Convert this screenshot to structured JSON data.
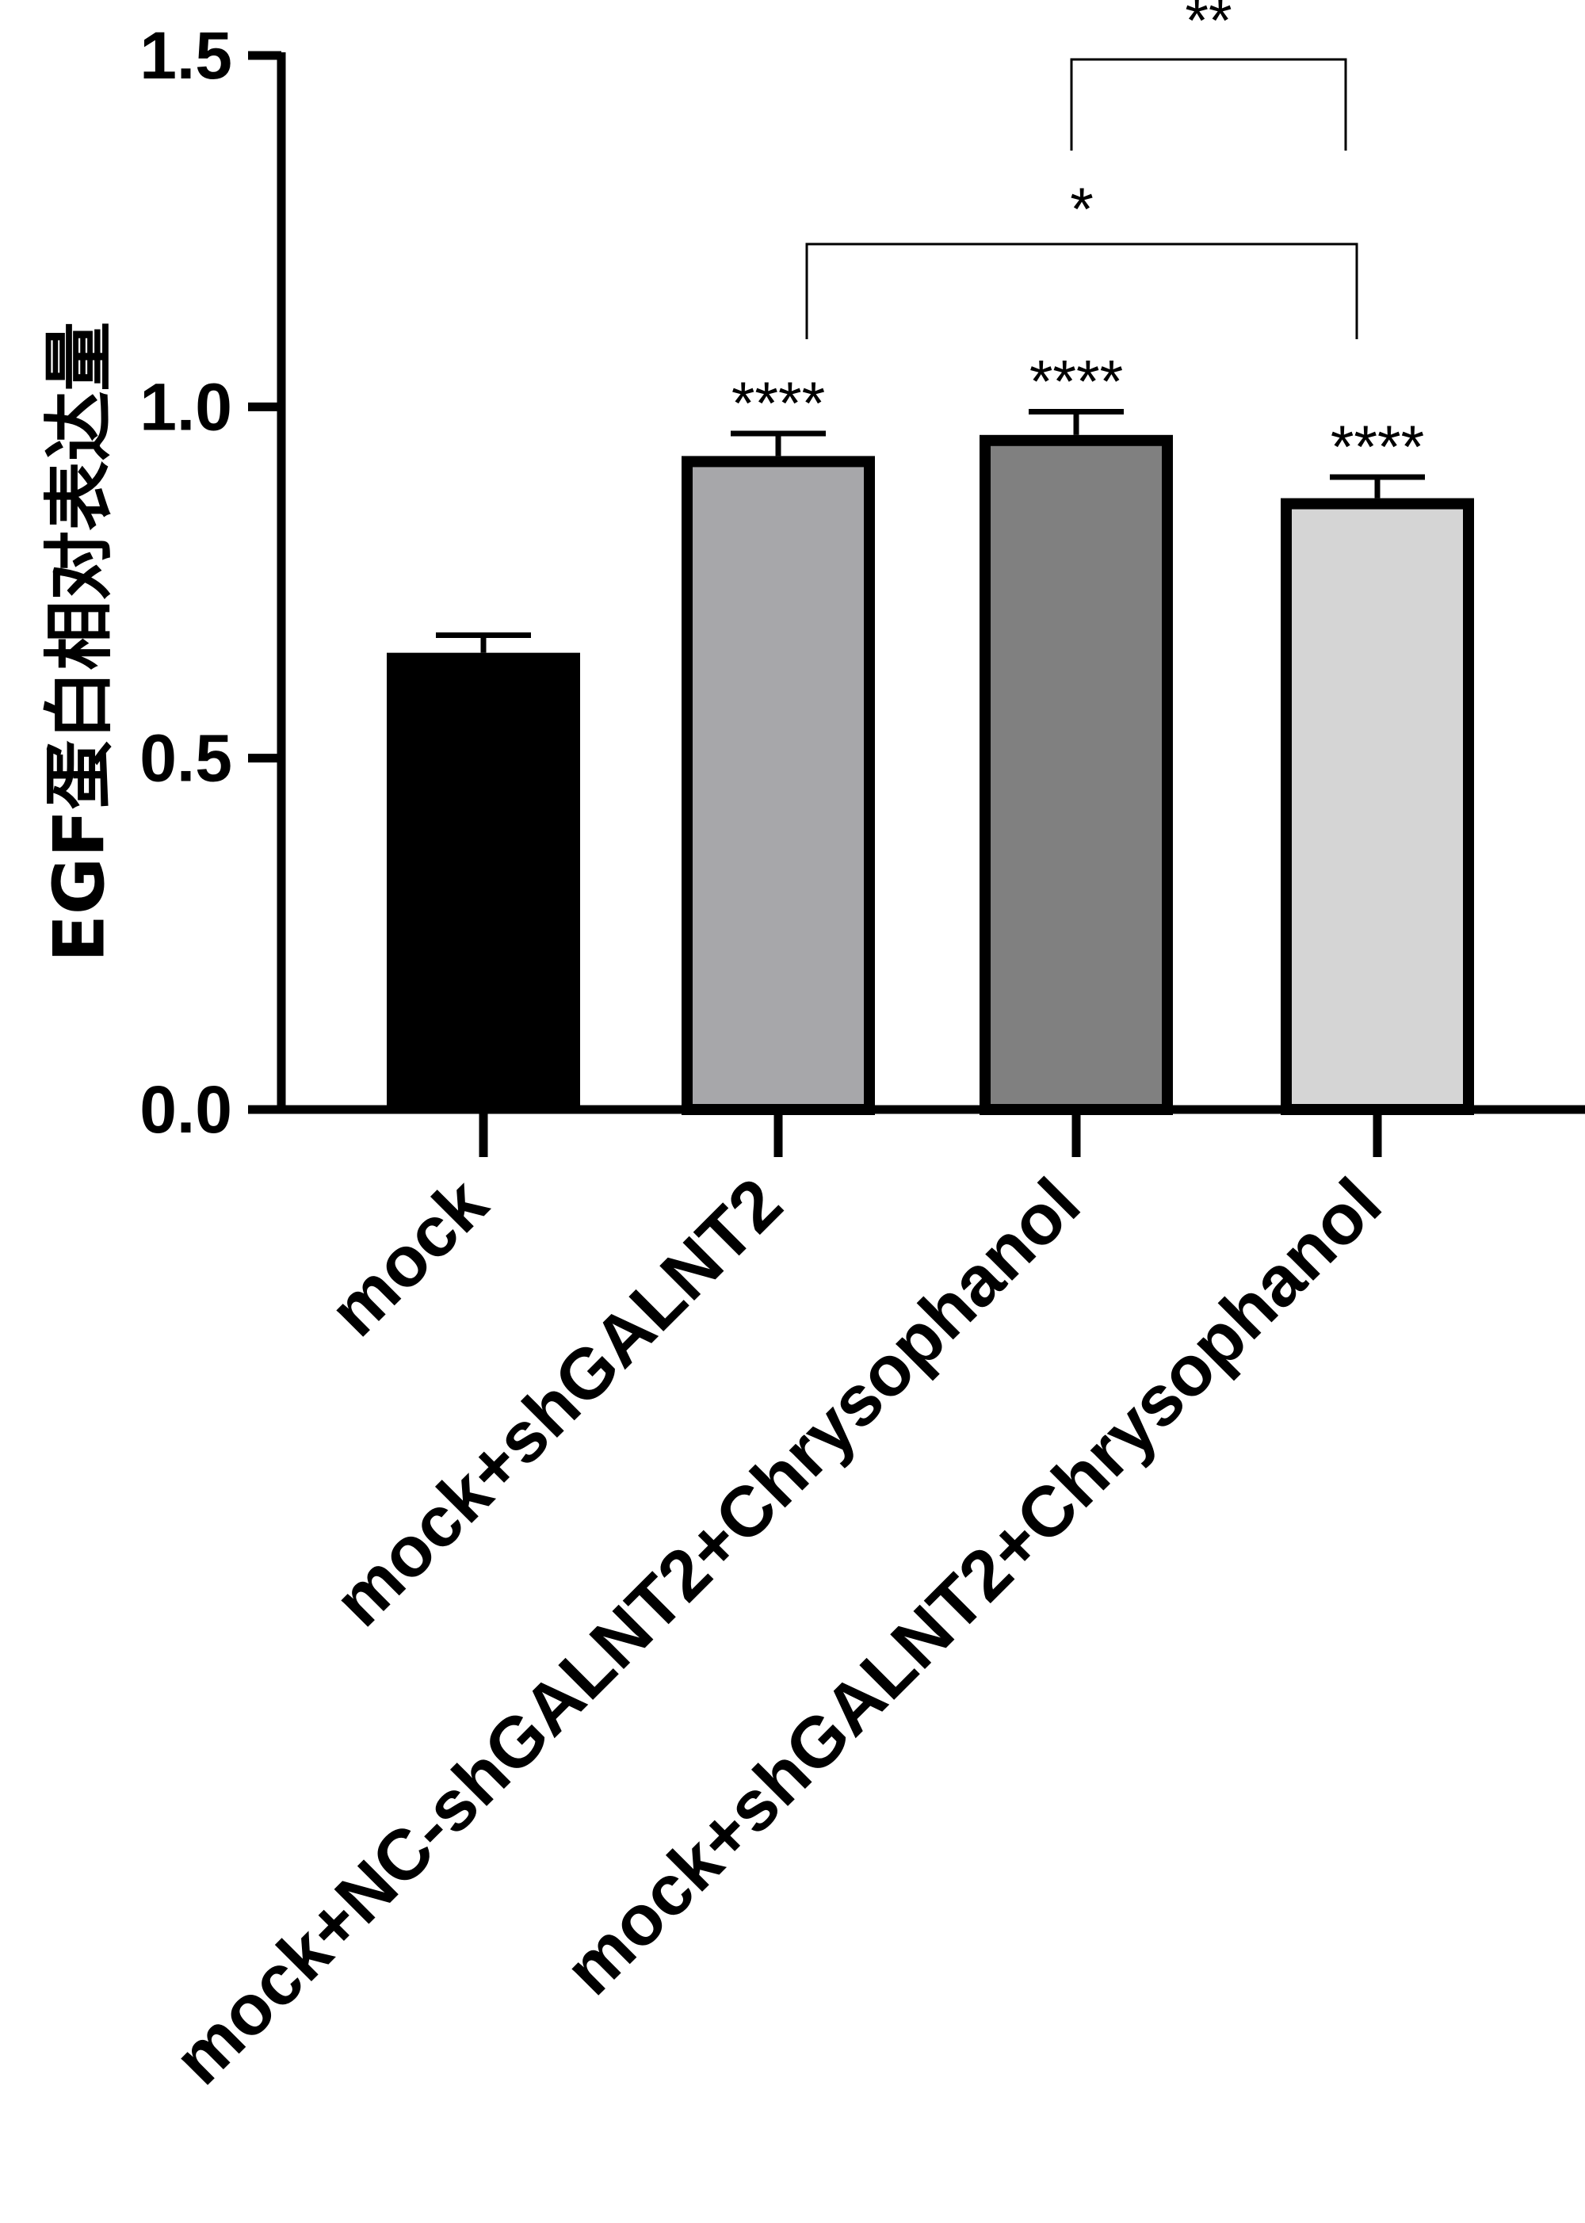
{
  "chart_data": {
    "type": "bar",
    "title": "",
    "xlabel": "",
    "ylabel": "EGF蛋白相对表达量",
    "ylim": [
      0,
      1.5
    ],
    "yticks": [
      "0.0",
      "0.5",
      "1.0",
      "1.5"
    ],
    "categories": [
      "mock",
      "mock+shGALNT2",
      "mock+NC-shGALNT2+Chrysophanol",
      "mock+shGALNT2+Chrysophanol"
    ],
    "values": [
      0.65,
      0.93,
      0.96,
      0.87
    ],
    "errors": [
      0.025,
      0.032,
      0.033,
      0.03
    ],
    "colors": [
      "#000000",
      "#a7a7aa",
      "#808080",
      "#d5d5d5"
    ],
    "bar_significance": [
      "",
      "****",
      "****",
      "****"
    ],
    "comparisons": [
      {
        "from": 2,
        "to": 3,
        "label": "**"
      },
      {
        "from": 1,
        "to": 3,
        "label": "*"
      }
    ]
  }
}
